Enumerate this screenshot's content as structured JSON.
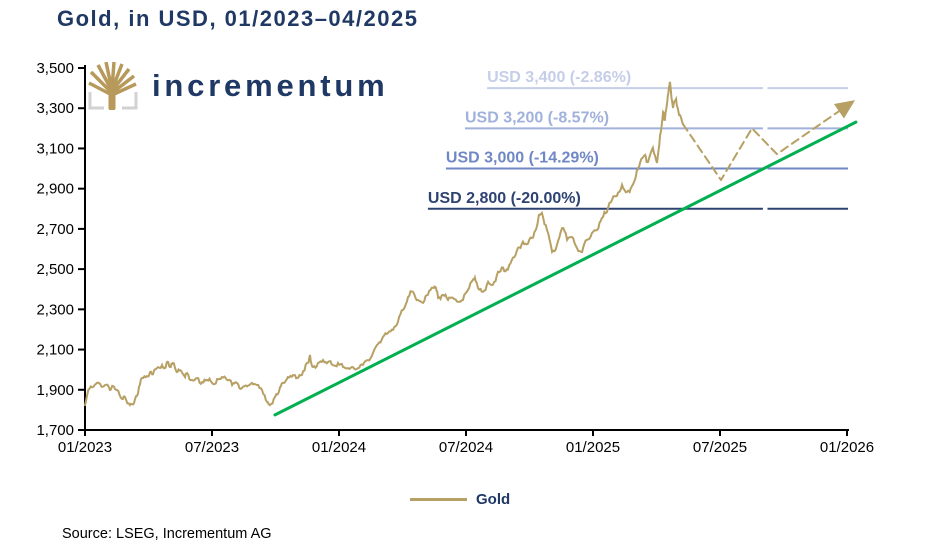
{
  "title": "Gold, in USD, 01/2023–04/2025",
  "logo": {
    "brand": "incrementum"
  },
  "legend": {
    "label": "Gold"
  },
  "source": "Source: LSEG, Incrementum AG",
  "colors": {
    "heading": "#1F3864",
    "gold": "#B7A064",
    "green": "#00B050",
    "axis": "#000000",
    "logo_tree": "#B79A5B",
    "logo_bracket": "#D2D2D2"
  },
  "chart_data": {
    "type": "line",
    "title": "Gold, in USD, 01/2023–04/2025",
    "ylim": [
      1700,
      3500
    ],
    "xlim_t": [
      0,
      3.05
    ],
    "yticks": [
      {
        "v": 1700,
        "label": "1,700"
      },
      {
        "v": 1900,
        "label": "1,900"
      },
      {
        "v": 2100,
        "label": "2,100"
      },
      {
        "v": 2300,
        "label": "2,300"
      },
      {
        "v": 2500,
        "label": "2,500"
      },
      {
        "v": 2700,
        "label": "2,700"
      },
      {
        "v": 2900,
        "label": "2,900"
      },
      {
        "v": 3100,
        "label": "3,100"
      },
      {
        "v": 3300,
        "label": "3,300"
      },
      {
        "v": 3500,
        "label": "3,500"
      }
    ],
    "xticks": [
      {
        "t": 0,
        "label": "01/2023"
      },
      {
        "t": 0.5,
        "label": "07/2023"
      },
      {
        "t": 1,
        "label": "01/2024"
      },
      {
        "t": 1.5,
        "label": "07/2024"
      },
      {
        "t": 2,
        "label": "01/2025"
      },
      {
        "t": 2.5,
        "label": "07/2025"
      },
      {
        "t": 3,
        "label": "01/2026"
      }
    ],
    "resistance_lines": [
      {
        "label": "USD 3,400 (-2.86%)",
        "value": 3400,
        "color": "#C5CEE8",
        "label_t": 1.583
      },
      {
        "label": "USD 3,200 (-8.57%)",
        "value": 3200,
        "color": "#A0B1DB",
        "label_t": 1.496
      },
      {
        "label": "USD 3,000 (-14.29%)",
        "value": 3000,
        "color": "#6F87C5",
        "label_t": 1.421
      },
      {
        "label": "USD 2,800 (-20.00%)",
        "value": 2800,
        "color": "#2E4372",
        "label_t": 1.35
      }
    ],
    "line_gap_t": [
      2.669,
      2.687
    ],
    "line_end_t": 3.004,
    "series": [
      {
        "name": "gold-trend-line",
        "color": "#00B050",
        "width": 3,
        "points": [
          [
            0.748,
            1775
          ],
          [
            3.035,
            3231
          ]
        ]
      },
      {
        "name": "gold-price-line",
        "color": "#B7A064",
        "width": 2,
        "jitter": true,
        "points": [
          [
            0,
            1824
          ],
          [
            0.013,
            1899
          ],
          [
            0.033,
            1915
          ],
          [
            0.052,
            1935
          ],
          [
            0.079,
            1924
          ],
          [
            0.098,
            1899
          ],
          [
            0.11,
            1919
          ],
          [
            0.126,
            1899
          ],
          [
            0.146,
            1854
          ],
          [
            0.157,
            1864
          ],
          [
            0.177,
            1824
          ],
          [
            0.193,
            1834
          ],
          [
            0.209,
            1884
          ],
          [
            0.224,
            1958
          ],
          [
            0.244,
            1968
          ],
          [
            0.256,
            1988
          ],
          [
            0.268,
            1978
          ],
          [
            0.283,
            2008
          ],
          [
            0.303,
            2023
          ],
          [
            0.315,
            2008
          ],
          [
            0.327,
            2038
          ],
          [
            0.335,
            2013
          ],
          [
            0.346,
            2033
          ],
          [
            0.362,
            1988
          ],
          [
            0.374,
            1998
          ],
          [
            0.394,
            1963
          ],
          [
            0.402,
            1983
          ],
          [
            0.421,
            1949
          ],
          [
            0.441,
            1958
          ],
          [
            0.461,
            1938
          ],
          [
            0.48,
            1949
          ],
          [
            0.5,
            1934
          ],
          [
            0.52,
            1953
          ],
          [
            0.539,
            1963
          ],
          [
            0.559,
            1949
          ],
          [
            0.579,
            1924
          ],
          [
            0.598,
            1934
          ],
          [
            0.618,
            1909
          ],
          [
            0.638,
            1917
          ],
          [
            0.657,
            1934
          ],
          [
            0.677,
            1924
          ],
          [
            0.697,
            1899
          ],
          [
            0.717,
            1839
          ],
          [
            0.728,
            1824
          ],
          [
            0.748,
            1864
          ],
          [
            0.768,
            1914
          ],
          [
            0.78,
            1934
          ],
          [
            0.799,
            1963
          ],
          [
            0.819,
            1973
          ],
          [
            0.835,
            1958
          ],
          [
            0.854,
            1973
          ],
          [
            0.874,
            2033
          ],
          [
            0.886,
            2073
          ],
          [
            0.898,
            2013
          ],
          [
            0.917,
            2033
          ],
          [
            0.937,
            2048
          ],
          [
            0.957,
            2038
          ],
          [
            0.976,
            2023
          ],
          [
            0.996,
            2033
          ],
          [
            1.016,
            2013
          ],
          [
            1.035,
            2008
          ],
          [
            1.055,
            2013
          ],
          [
            1.075,
            2008
          ],
          [
            1.094,
            2023
          ],
          [
            1.114,
            2048
          ],
          [
            1.134,
            2083
          ],
          [
            1.154,
            2128
          ],
          [
            1.173,
            2163
          ],
          [
            1.193,
            2183
          ],
          [
            1.213,
            2198
          ],
          [
            1.232,
            2237
          ],
          [
            1.252,
            2297
          ],
          [
            1.272,
            2362
          ],
          [
            1.291,
            2387
          ],
          [
            1.311,
            2347
          ],
          [
            1.331,
            2332
          ],
          [
            1.35,
            2372
          ],
          [
            1.37,
            2407
          ],
          [
            1.378,
            2412
          ],
          [
            1.39,
            2357
          ],
          [
            1.409,
            2372
          ],
          [
            1.429,
            2347
          ],
          [
            1.449,
            2357
          ],
          [
            1.469,
            2337
          ],
          [
            1.488,
            2347
          ],
          [
            1.508,
            2397
          ],
          [
            1.527,
            2447
          ],
          [
            1.535,
            2457
          ],
          [
            1.547,
            2407
          ],
          [
            1.567,
            2387
          ],
          [
            1.587,
            2437
          ],
          [
            1.606,
            2422
          ],
          [
            1.626,
            2487
          ],
          [
            1.646,
            2507
          ],
          [
            1.665,
            2497
          ],
          [
            1.685,
            2557
          ],
          [
            1.705,
            2607
          ],
          [
            1.724,
            2637
          ],
          [
            1.744,
            2627
          ],
          [
            1.764,
            2657
          ],
          [
            1.787,
            2769
          ],
          [
            1.799,
            2779
          ],
          [
            1.819,
            2694
          ],
          [
            1.839,
            2585
          ],
          [
            1.858,
            2620
          ],
          [
            1.878,
            2704
          ],
          [
            1.898,
            2645
          ],
          [
            1.917,
            2660
          ],
          [
            1.937,
            2605
          ],
          [
            1.957,
            2585
          ],
          [
            1.976,
            2645
          ],
          [
            1.996,
            2680
          ],
          [
            2.016,
            2695
          ],
          [
            2.035,
            2754
          ],
          [
            2.055,
            2784
          ],
          [
            2.075,
            2844
          ],
          [
            2.094,
            2864
          ],
          [
            2.114,
            2919
          ],
          [
            2.134,
            2884
          ],
          [
            2.154,
            2914
          ],
          [
            2.173,
            2993
          ],
          [
            2.185,
            3028
          ],
          [
            2.205,
            3068
          ],
          [
            2.217,
            3033
          ],
          [
            2.236,
            3103
          ],
          [
            2.252,
            3028
          ],
          [
            2.264,
            3167
          ],
          [
            2.276,
            3281
          ],
          [
            2.283,
            3242
          ],
          [
            2.295,
            3366
          ],
          [
            2.303,
            3431
          ],
          [
            2.315,
            3301
          ],
          [
            2.327,
            3346
          ],
          [
            2.339,
            3266
          ],
          [
            2.354,
            3221
          ]
        ]
      },
      {
        "name": "gold-projection-line",
        "color": "#B7A064",
        "width": 2,
        "dash": true,
        "arrow": true,
        "points": [
          [
            2.354,
            3221
          ],
          [
            2.504,
            2943
          ],
          [
            2.626,
            3200
          ],
          [
            2.724,
            3072
          ],
          [
            2.98,
            3295
          ]
        ]
      }
    ]
  }
}
